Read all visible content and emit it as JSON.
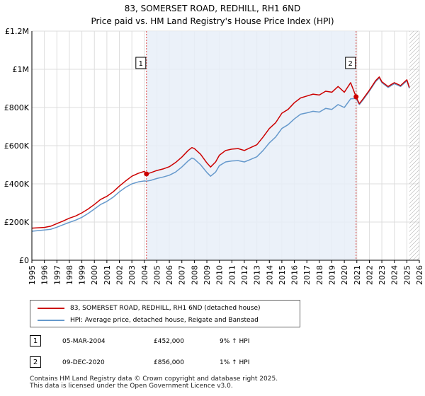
{
  "title_line1": "83, SOMERSET ROAD, REDHILL, RH1 6ND",
  "title_line2": "Price paid vs. HM Land Registry's House Price Index (HPI)",
  "colors": {
    "property": "#cc0000",
    "hpi": "#6699cc",
    "shade": "#e8eef8",
    "grid": "#dddddd",
    "marker_line": "#dd4444",
    "hatch": "#aaaaaa"
  },
  "chart_data": {
    "type": "line",
    "x_range": [
      1995,
      2026
    ],
    "ylim": [
      0,
      1200000
    ],
    "y_ticks": [
      {
        "value": 0,
        "label": "£0"
      },
      {
        "value": 200000,
        "label": "£200K"
      },
      {
        "value": 400000,
        "label": "£400K"
      },
      {
        "value": 600000,
        "label": "£600K"
      },
      {
        "value": 800000,
        "label": "£800K"
      },
      {
        "value": 1000000,
        "label": "£1M"
      },
      {
        "value": 1200000,
        "label": "£1.2M"
      }
    ],
    "x_ticks": [
      "1995",
      "1996",
      "1997",
      "1998",
      "1999",
      "2000",
      "2001",
      "2002",
      "2003",
      "2004",
      "2005",
      "2006",
      "2007",
      "2008",
      "2009",
      "2010",
      "2011",
      "2012",
      "2013",
      "2014",
      "2015",
      "2016",
      "2017",
      "2018",
      "2019",
      "2020",
      "2021",
      "2022",
      "2023",
      "2024",
      "2025",
      "2026"
    ],
    "shaded_period": {
      "from": 2004.17,
      "to": 2020.94
    },
    "data_end": 2025.2,
    "series": [
      {
        "name": "83, SOMERSET ROAD, REDHILL, RH1 6ND (detached house)",
        "color": "#cc0000",
        "x": [
          1995,
          1995.5,
          1996,
          1996.5,
          1997,
          1997.5,
          1998,
          1998.5,
          1999,
          1999.5,
          2000,
          2000.5,
          2001,
          2001.5,
          2002,
          2002.5,
          2003,
          2003.5,
          2004,
          2004.17,
          2004.5,
          2005,
          2005.5,
          2006,
          2006.5,
          2007,
          2007.5,
          2007.8,
          2008,
          2008.5,
          2009,
          2009.3,
          2009.7,
          2010,
          2010.5,
          2011,
          2011.5,
          2012,
          2012.5,
          2013,
          2013.5,
          2014,
          2014.5,
          2015,
          2015.5,
          2016,
          2016.5,
          2017,
          2017.5,
          2018,
          2018.5,
          2019,
          2019.5,
          2020,
          2020.5,
          2020.94,
          2021.2,
          2021.5,
          2022,
          2022.5,
          2022.8,
          2023,
          2023.5,
          2024,
          2024.5,
          2025,
          2025.2
        ],
        "y": [
          168000,
          170000,
          172000,
          178000,
          192000,
          205000,
          220000,
          232000,
          248000,
          268000,
          292000,
          318000,
          335000,
          358000,
          388000,
          415000,
          440000,
          455000,
          465000,
          452000,
          458000,
          470000,
          478000,
          490000,
          512000,
          540000,
          575000,
          590000,
          585000,
          555000,
          510000,
          488000,
          515000,
          550000,
          575000,
          582000,
          585000,
          575000,
          590000,
          605000,
          645000,
          690000,
          720000,
          770000,
          790000,
          825000,
          850000,
          860000,
          870000,
          865000,
          885000,
          880000,
          910000,
          880000,
          930000,
          856000,
          820000,
          845000,
          890000,
          940000,
          960000,
          935000,
          910000,
          930000,
          915000,
          945000,
          905000
        ]
      },
      {
        "name": "HPI: Average price, detached house, Reigate and Banstead",
        "color": "#6699cc",
        "x": [
          1995,
          1995.5,
          1996,
          1996.5,
          1997,
          1997.5,
          1998,
          1998.5,
          1999,
          1999.5,
          2000,
          2000.5,
          2001,
          2001.5,
          2002,
          2002.5,
          2003,
          2003.5,
          2004,
          2004.17,
          2004.5,
          2005,
          2005.5,
          2006,
          2006.5,
          2007,
          2007.5,
          2007.8,
          2008,
          2008.5,
          2009,
          2009.3,
          2009.7,
          2010,
          2010.5,
          2011,
          2011.5,
          2012,
          2012.5,
          2013,
          2013.5,
          2014,
          2014.5,
          2015,
          2015.5,
          2016,
          2016.5,
          2017,
          2017.5,
          2018,
          2018.5,
          2019,
          2019.5,
          2020,
          2020.5,
          2020.94,
          2021.2,
          2021.5,
          2022,
          2022.5,
          2022.8,
          2023,
          2023.5,
          2024,
          2024.5,
          2025,
          2025.2
        ],
        "y": [
          152000,
          155000,
          158000,
          162000,
          173000,
          186000,
          198000,
          210000,
          225000,
          245000,
          268000,
          292000,
          308000,
          330000,
          358000,
          382000,
          400000,
          410000,
          415000,
          414000,
          418000,
          428000,
          436000,
          445000,
          462000,
          488000,
          520000,
          535000,
          530000,
          500000,
          460000,
          440000,
          462000,
          495000,
          515000,
          520000,
          522000,
          515000,
          528000,
          542000,
          575000,
          615000,
          645000,
          690000,
          710000,
          740000,
          765000,
          772000,
          780000,
          776000,
          795000,
          790000,
          815000,
          800000,
          845000,
          847000,
          815000,
          840000,
          885000,
          935000,
          955000,
          930000,
          905000,
          925000,
          910000,
          940000,
          900000
        ]
      }
    ],
    "sales": [
      {
        "label": "1",
        "x": 2004.17,
        "y": 452000,
        "date": "05-MAR-2004",
        "price": "£452,000",
        "hpi": "9% ↑ HPI"
      },
      {
        "label": "2",
        "x": 2020.94,
        "y": 856000,
        "date": "09-DEC-2020",
        "price": "£856,000",
        "hpi": "1% ↑ HPI"
      }
    ]
  },
  "footer_line1": "Contains HM Land Registry data © Crown copyright and database right 2025.",
  "footer_line2": "This data is licensed under the Open Government Licence v3.0."
}
